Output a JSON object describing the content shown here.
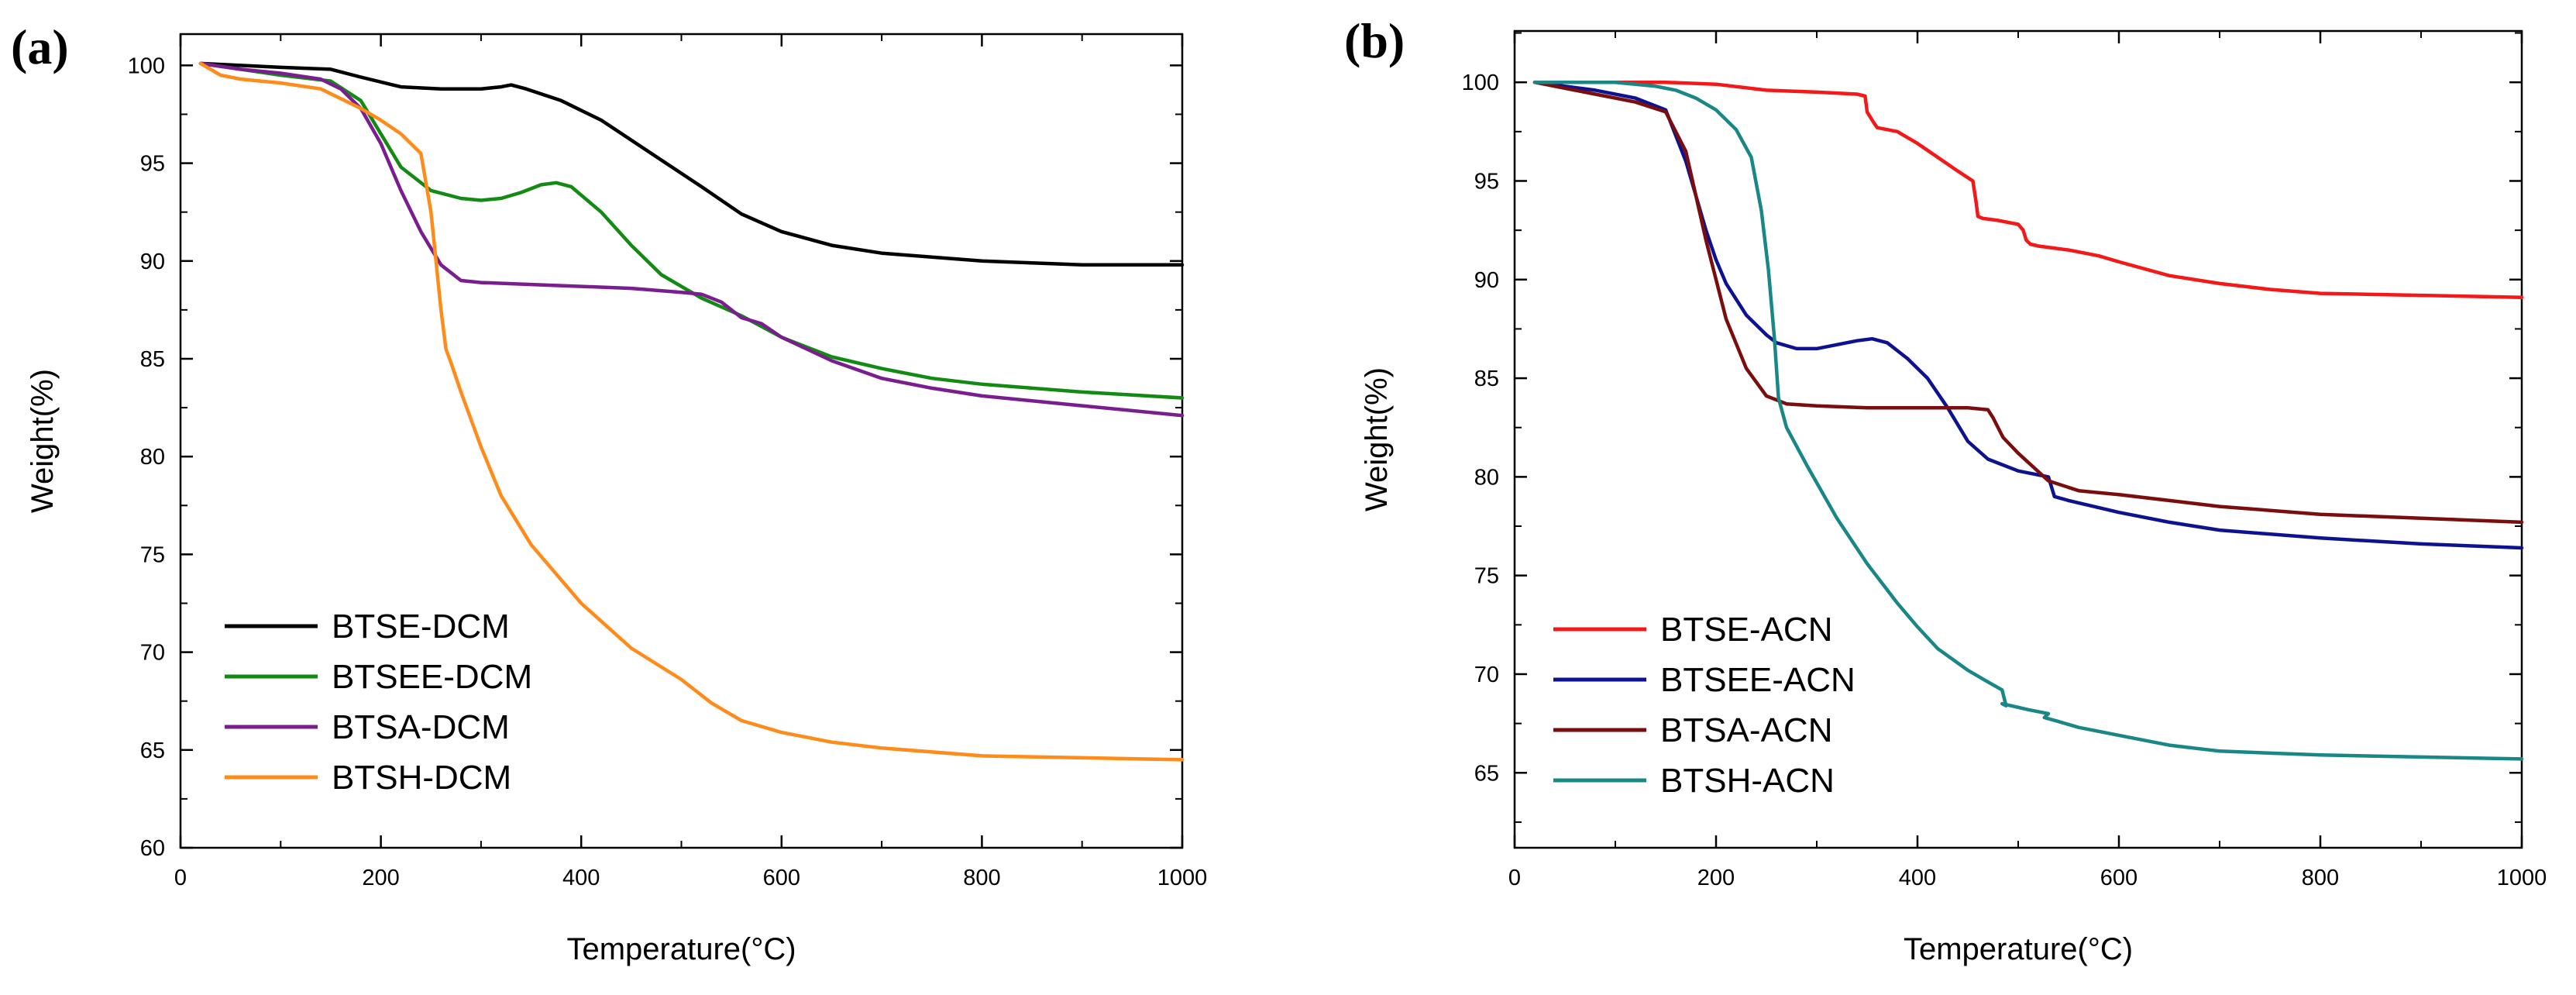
{
  "chart_data": [
    {
      "type": "line",
      "panel_label": "(a)",
      "xlabel": "Temperature(°C)",
      "ylabel": "Weight(%)",
      "xlim": [
        0,
        1000
      ],
      "ylim": [
        60,
        101.6
      ],
      "xticks": [
        "0",
        "200",
        "400",
        "600",
        "800",
        "1000"
      ],
      "yticks": [
        "60",
        "65",
        "70",
        "75",
        "80",
        "85",
        "90",
        "95",
        "100"
      ],
      "legend_position": "lower-left",
      "series": [
        {
          "name": "BTSE-DCM",
          "color": "#000000",
          "x": [
            20,
            60,
            100,
            150,
            180,
            220,
            260,
            300,
            320,
            330,
            345,
            380,
            420,
            470,
            520,
            560,
            600,
            650,
            700,
            800,
            900,
            1000
          ],
          "y": [
            100.1,
            100.0,
            99.9,
            99.8,
            99.4,
            98.9,
            98.8,
            98.8,
            98.9,
            99.0,
            98.8,
            98.2,
            97.2,
            95.5,
            93.8,
            92.4,
            91.5,
            90.8,
            90.4,
            90.0,
            89.8,
            89.8
          ]
        },
        {
          "name": "BTSEE-DCM",
          "color": "#138a13",
          "x": [
            20,
            60,
            100,
            150,
            180,
            200,
            220,
            250,
            280,
            300,
            320,
            340,
            360,
            375,
            390,
            420,
            450,
            480,
            520,
            560,
            600,
            650,
            700,
            750,
            800,
            900,
            1000
          ],
          "y": [
            100.1,
            99.8,
            99.5,
            99.2,
            98.2,
            96.5,
            94.8,
            93.6,
            93.2,
            93.1,
            93.2,
            93.5,
            93.9,
            94.0,
            93.8,
            92.5,
            90.8,
            89.3,
            88.1,
            87.2,
            86.1,
            85.1,
            84.5,
            84.0,
            83.7,
            83.3,
            83.0
          ]
        },
        {
          "name": "BTSA-DCM",
          "color": "#7a1d8f",
          "x": [
            20,
            60,
            100,
            140,
            160,
            180,
            200,
            220,
            240,
            260,
            280,
            300,
            350,
            400,
            450,
            500,
            520,
            540,
            560,
            580,
            600,
            650,
            700,
            750,
            800,
            900,
            1000
          ],
          "y": [
            100.1,
            99.8,
            99.6,
            99.3,
            98.8,
            97.8,
            96.0,
            93.6,
            91.5,
            89.8,
            89.0,
            88.9,
            88.8,
            88.7,
            88.6,
            88.4,
            88.3,
            87.9,
            87.1,
            86.8,
            86.1,
            84.9,
            84.0,
            83.5,
            83.1,
            82.6,
            82.1
          ]
        },
        {
          "name": "BTSH-DCM",
          "color": "#ff8c1a",
          "x": [
            20,
            40,
            60,
            100,
            140,
            180,
            200,
            220,
            240,
            250,
            260,
            265,
            270,
            280,
            300,
            320,
            350,
            400,
            450,
            500,
            530,
            560,
            600,
            650,
            700,
            800,
            900,
            1000
          ],
          "y": [
            100.1,
            99.5,
            99.3,
            99.1,
            98.8,
            97.8,
            97.2,
            96.5,
            95.5,
            92.5,
            87.5,
            85.5,
            84.8,
            83.3,
            80.5,
            78.0,
            75.5,
            72.5,
            70.2,
            68.6,
            67.4,
            66.5,
            65.9,
            65.4,
            65.1,
            64.7,
            64.6,
            64.5
          ]
        }
      ]
    },
    {
      "type": "line",
      "panel_label": "(b)",
      "xlabel": "Temperature(°C)",
      "ylabel": "Weight(%)",
      "xlim": [
        0,
        1000
      ],
      "ylim": [
        61.2,
        102.6
      ],
      "xticks": [
        "0",
        "200",
        "400",
        "600",
        "800",
        "1000"
      ],
      "yticks": [
        "65",
        "70",
        "75",
        "80",
        "85",
        "90",
        "95",
        "100"
      ],
      "legend_position": "lower-left",
      "series": [
        {
          "name": "BTSE-ACN",
          "color": "#f41818",
          "x": [
            20,
            100,
            150,
            200,
            250,
            300,
            340,
            348,
            350,
            356,
            360,
            380,
            400,
            420,
            440,
            455,
            458,
            460,
            465,
            480,
            500,
            505,
            508,
            512,
            520,
            550,
            580,
            600,
            650,
            700,
            750,
            800,
            900,
            1000
          ],
          "y": [
            100.0,
            100.0,
            100.0,
            99.9,
            99.6,
            99.5,
            99.4,
            99.3,
            98.5,
            98.0,
            97.7,
            97.5,
            96.9,
            96.2,
            95.5,
            95.0,
            94.0,
            93.2,
            93.1,
            93.0,
            92.8,
            92.5,
            92.0,
            91.8,
            91.7,
            91.5,
            91.2,
            90.9,
            90.2,
            89.8,
            89.5,
            89.3,
            89.2,
            89.1
          ]
        },
        {
          "name": "BTSEE-ACN",
          "color": "#0d1390",
          "x": [
            20,
            80,
            120,
            150,
            170,
            190,
            200,
            210,
            230,
            250,
            260,
            280,
            300,
            320,
            340,
            355,
            370,
            390,
            410,
            430,
            450,
            470,
            500,
            530,
            533,
            536,
            550,
            600,
            650,
            700,
            800,
            900,
            1000
          ],
          "y": [
            100.0,
            99.6,
            99.2,
            98.6,
            96.0,
            92.5,
            91.0,
            89.8,
            88.2,
            87.2,
            86.8,
            86.5,
            86.5,
            86.7,
            86.9,
            87.0,
            86.8,
            86.0,
            85.0,
            83.5,
            81.8,
            80.9,
            80.3,
            80.0,
            79.5,
            79.0,
            78.8,
            78.2,
            77.7,
            77.3,
            76.9,
            76.6,
            76.4
          ]
        },
        {
          "name": "BTSA-ACN",
          "color": "#7a0d0d",
          "x": [
            20,
            80,
            120,
            150,
            170,
            190,
            210,
            230,
            250,
            270,
            300,
            350,
            400,
            450,
            470,
            475,
            485,
            500,
            530,
            560,
            600,
            650,
            700,
            800,
            900,
            1000
          ],
          "y": [
            100.0,
            99.4,
            99.0,
            98.5,
            96.5,
            92.0,
            88.0,
            85.5,
            84.1,
            83.7,
            83.6,
            83.5,
            83.5,
            83.5,
            83.4,
            83.0,
            82.0,
            81.2,
            79.8,
            79.3,
            79.1,
            78.8,
            78.5,
            78.1,
            77.9,
            77.7
          ]
        },
        {
          "name": "BTSH-ACN",
          "color": "#1a8787",
          "x": [
            20,
            60,
            100,
            140,
            160,
            180,
            200,
            220,
            235,
            245,
            252,
            258,
            262,
            270,
            290,
            320,
            350,
            380,
            400,
            420,
            450,
            470,
            484,
            488,
            484,
            510,
            530,
            526,
            540,
            560,
            600,
            650,
            700,
            800,
            900,
            1000
          ],
          "y": [
            100.0,
            100.0,
            100.0,
            99.8,
            99.6,
            99.2,
            98.6,
            97.6,
            96.2,
            93.5,
            90.5,
            87.0,
            84.0,
            82.5,
            80.6,
            77.9,
            75.6,
            73.6,
            72.4,
            71.3,
            70.2,
            69.6,
            69.2,
            68.4,
            68.5,
            68.2,
            68.0,
            67.8,
            67.6,
            67.3,
            66.9,
            66.4,
            66.1,
            65.9,
            65.8,
            65.7
          ]
        }
      ]
    }
  ]
}
